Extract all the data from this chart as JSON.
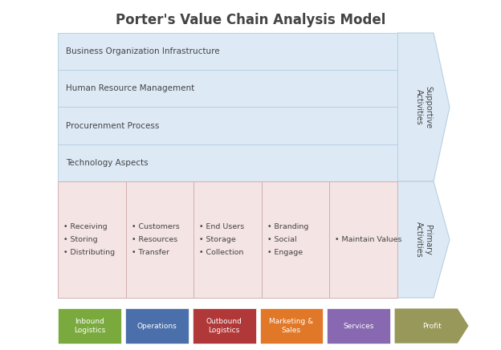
{
  "title": "Porter's Value Chain Analysis Model",
  "title_fontsize": 12,
  "support_rows": [
    "Business Organization Infrastructure",
    "Human Resource Management",
    "Procurenment Process",
    "Technology Aspects"
  ],
  "support_color": "#ddeaf6",
  "support_border": "#b8cfe0",
  "primary_color": "#f5e4e4",
  "primary_border": "#d0b0b0",
  "arrow_color": "#ddeaf6",
  "arrow_border": "#b8cfe0",
  "arrow_label_support": "Supportive\nActivities",
  "arrow_label_primary": "Primary\nActivities",
  "primary_columns": [
    {
      "bullets": [
        "Receiving",
        "Storing",
        "Distributing"
      ]
    },
    {
      "bullets": [
        "Customers",
        "Resources",
        "Transfer"
      ]
    },
    {
      "bullets": [
        "End Users",
        "Storage",
        "Collection"
      ]
    },
    {
      "bullets": [
        "Branding",
        "Social",
        "Engage"
      ]
    },
    {
      "bullets": [
        "Maintain Values"
      ]
    }
  ],
  "bottom_items": [
    {
      "label": "Inbound\nLogistics",
      "color": "#7aaa3e"
    },
    {
      "label": "Operations",
      "color": "#4a6faa"
    },
    {
      "label": "Outbound\nLogistics",
      "color": "#b03838"
    },
    {
      "label": "Marketing &\nSales",
      "color": "#e07828"
    },
    {
      "label": "Services",
      "color": "#8868b0"
    },
    {
      "label": "Profit",
      "color": "#98985a",
      "arrow": true
    }
  ],
  "bottom_text_color": "#ffffff",
  "text_color": "#444444"
}
